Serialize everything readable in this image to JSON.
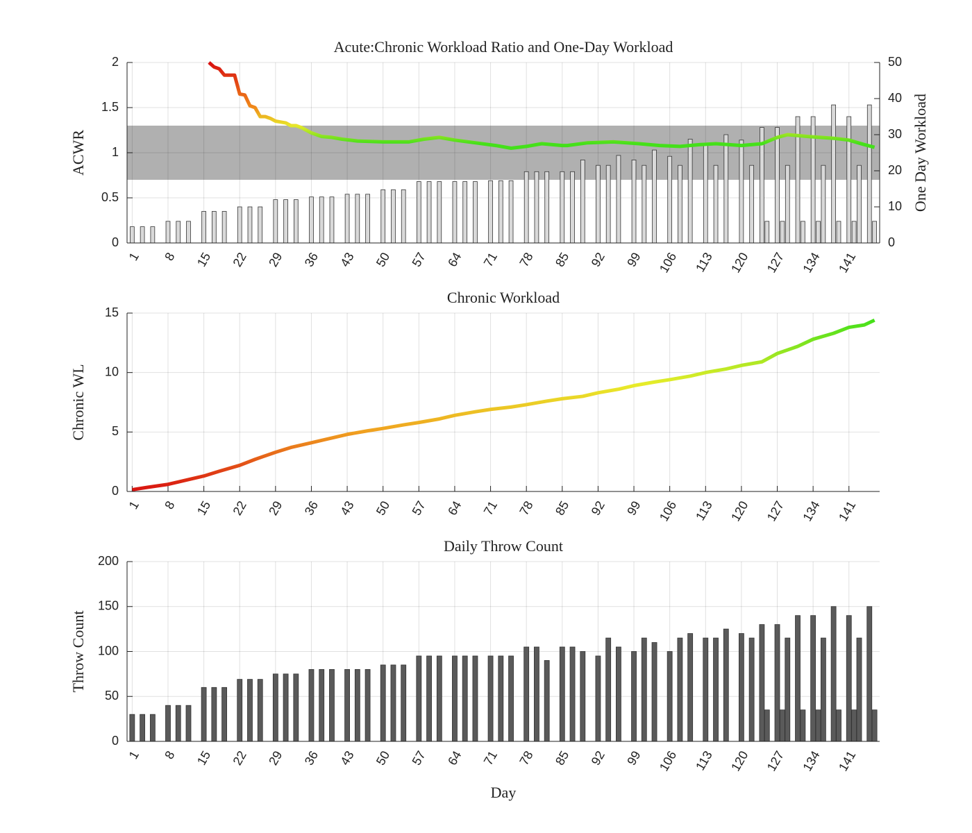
{
  "chart_data": [
    {
      "type": "combo",
      "title": "Acute:Chronic Workload Ratio and One-Day Workload",
      "ylabel": "ACWR",
      "y2label": "One Day Workload",
      "xlim": [
        0,
        147
      ],
      "xticks": [
        1,
        8,
        15,
        22,
        29,
        36,
        43,
        50,
        57,
        64,
        71,
        78,
        85,
        92,
        99,
        106,
        113,
        120,
        127,
        134,
        141
      ],
      "ylim": [
        0,
        2
      ],
      "yticks": [
        0,
        0.5,
        1,
        1.5,
        2
      ],
      "y2lim": [
        0,
        50
      ],
      "y2ticks": [
        0,
        10,
        20,
        30,
        40,
        50
      ],
      "grid": true,
      "band": [
        0.7,
        1.3
      ],
      "band_color": "#b0b0b0",
      "line": {
        "x": [
          16,
          17,
          18,
          19,
          21,
          22,
          23,
          24,
          25,
          26,
          27,
          28,
          29,
          30,
          31,
          32,
          33,
          34,
          35,
          36,
          37,
          38,
          40,
          42,
          45,
          50,
          55,
          58,
          61,
          64,
          68,
          72,
          75,
          78,
          81,
          85,
          86,
          90,
          95,
          100,
          104,
          108,
          112,
          115,
          120,
          124,
          127,
          129,
          133,
          138,
          141,
          144,
          146
        ],
        "values": [
          2.0,
          1.95,
          1.93,
          1.86,
          1.86,
          1.65,
          1.64,
          1.52,
          1.5,
          1.4,
          1.4,
          1.38,
          1.35,
          1.34,
          1.33,
          1.3,
          1.3,
          1.28,
          1.25,
          1.22,
          1.2,
          1.18,
          1.17,
          1.15,
          1.13,
          1.12,
          1.12,
          1.15,
          1.17,
          1.14,
          1.11,
          1.08,
          1.05,
          1.07,
          1.1,
          1.08,
          1.08,
          1.11,
          1.12,
          1.1,
          1.08,
          1.07,
          1.09,
          1.1,
          1.08,
          1.1,
          1.17,
          1.2,
          1.18,
          1.16,
          1.14,
          1.09,
          1.06
        ],
        "colorscale": [
          {
            "value": 1.1,
            "color": "#44e01a"
          },
          {
            "value": 1.3,
            "color": "#e8e82a"
          },
          {
            "value": 1.5,
            "color": "#f08a1a"
          },
          {
            "value": 2,
            "color": "#d81010"
          }
        ]
      },
      "bars": {
        "axis": "y2",
        "color": "#d9d9d9",
        "x": [
          1,
          3,
          5,
          8,
          10,
          12,
          15,
          17,
          19,
          22,
          24,
          26,
          29,
          31,
          33,
          36,
          38,
          40,
          43,
          45,
          47,
          50,
          52,
          54,
          57,
          59,
          61,
          64,
          66,
          68,
          71,
          73,
          75,
          78,
          80,
          82,
          85,
          87,
          89,
          92,
          94,
          96,
          99,
          101,
          103,
          106,
          108,
          110,
          113,
          115,
          117,
          120,
          122,
          124,
          125,
          127,
          128,
          129,
          131,
          132,
          134,
          135,
          136,
          138,
          139,
          141,
          142,
          143,
          145,
          146
        ],
        "values": [
          4.5,
          4.5,
          4.5,
          6,
          6,
          6,
          8.75,
          8.75,
          8.75,
          10,
          10,
          10,
          12,
          12,
          12,
          12.75,
          12.75,
          12.75,
          13.5,
          13.5,
          13.5,
          14.75,
          14.75,
          14.75,
          17,
          17,
          17,
          17,
          17,
          17,
          17.25,
          17.25,
          17.25,
          19.75,
          19.75,
          19.75,
          19.75,
          19.75,
          23,
          21.5,
          21.5,
          24.25,
          23,
          21.5,
          25.75,
          24,
          21.5,
          28.75,
          27,
          21.5,
          30,
          28.5,
          21.5,
          32,
          6,
          32,
          6,
          21.5,
          35,
          6,
          35,
          6,
          21.5,
          38.25,
          6,
          35,
          6,
          21.5,
          38.25,
          6
        ]
      }
    },
    {
      "type": "line",
      "title": "Chronic Workload",
      "ylabel": "Chronic WL",
      "xlim": [
        0,
        147
      ],
      "xticks": [
        1,
        8,
        15,
        22,
        29,
        36,
        43,
        50,
        57,
        64,
        71,
        78,
        85,
        92,
        99,
        106,
        113,
        120,
        127,
        134,
        141
      ],
      "ylim": [
        0,
        15
      ],
      "yticks": [
        0,
        5,
        10,
        15
      ],
      "grid": true,
      "line": {
        "x": [
          1,
          4,
          8,
          11,
          15,
          18,
          22,
          25,
          29,
          32,
          36,
          40,
          43,
          47,
          50,
          54,
          57,
          61,
          64,
          68,
          71,
          75,
          78,
          82,
          85,
          89,
          92,
          96,
          99,
          103,
          106,
          110,
          113,
          117,
          120,
          124,
          127,
          131,
          134,
          138,
          141,
          144,
          146
        ],
        "values": [
          0.15,
          0.35,
          0.6,
          0.9,
          1.3,
          1.7,
          2.2,
          2.7,
          3.3,
          3.7,
          4.1,
          4.5,
          4.8,
          5.1,
          5.3,
          5.6,
          5.8,
          6.1,
          6.4,
          6.7,
          6.9,
          7.1,
          7.3,
          7.6,
          7.8,
          8.0,
          8.3,
          8.6,
          8.9,
          9.2,
          9.4,
          9.7,
          10.0,
          10.3,
          10.6,
          10.9,
          11.6,
          12.2,
          12.8,
          13.3,
          13.8,
          14.0,
          14.4
        ],
        "colorscale": [
          {
            "value": 0,
            "color": "#d81010"
          },
          {
            "value": 5,
            "color": "#f0a020"
          },
          {
            "value": 9,
            "color": "#e8ec2a"
          },
          {
            "value": 14.4,
            "color": "#44e01a"
          }
        ]
      }
    },
    {
      "type": "bar",
      "title": "Daily Throw Count",
      "ylabel": "Throw Count",
      "xlabel": "Day",
      "xlim": [
        0,
        147
      ],
      "xticks": [
        1,
        8,
        15,
        22,
        29,
        36,
        43,
        50,
        57,
        64,
        71,
        78,
        85,
        92,
        99,
        106,
        113,
        120,
        127,
        134,
        141
      ],
      "ylim": [
        0,
        200
      ],
      "yticks": [
        0,
        50,
        100,
        150,
        200
      ],
      "grid": true,
      "bars": {
        "color": "#5a5a5a",
        "x": [
          1,
          3,
          5,
          8,
          10,
          12,
          15,
          17,
          19,
          22,
          24,
          26,
          29,
          31,
          33,
          36,
          38,
          40,
          43,
          45,
          47,
          50,
          52,
          54,
          57,
          59,
          61,
          64,
          66,
          68,
          71,
          73,
          75,
          78,
          80,
          82,
          85,
          87,
          89,
          92,
          94,
          96,
          99,
          101,
          103,
          106,
          108,
          110,
          113,
          115,
          117,
          120,
          122,
          124,
          125,
          127,
          128,
          129,
          131,
          132,
          134,
          135,
          136,
          138,
          139,
          141,
          142,
          143,
          145,
          146
        ],
        "values": [
          30,
          30,
          30,
          40,
          40,
          40,
          60,
          60,
          60,
          69,
          69,
          69,
          75,
          75,
          75,
          80,
          80,
          80,
          80,
          80,
          80,
          85,
          85,
          85,
          95,
          95,
          95,
          95,
          95,
          95,
          95,
          95,
          95,
          105,
          105,
          90,
          105,
          105,
          100,
          95,
          115,
          105,
          100,
          115,
          110,
          100,
          115,
          120,
          115,
          115,
          125,
          120,
          115,
          130,
          35,
          130,
          35,
          115,
          140,
          35,
          140,
          35,
          115,
          150,
          35,
          140,
          35,
          115,
          150,
          35
        ]
      }
    }
  ]
}
